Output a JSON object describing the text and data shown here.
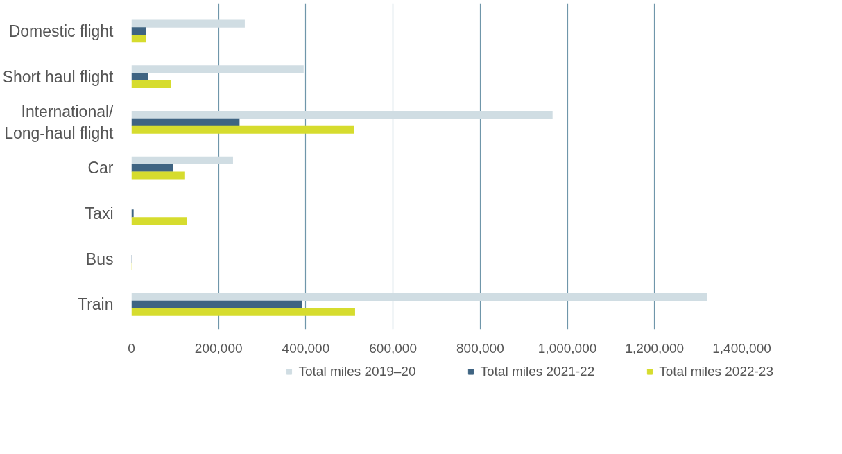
{
  "chart_data": {
    "type": "bar",
    "orientation": "horizontal",
    "categories": [
      "Domestic flight",
      "Short haul flight",
      "International/\nLong-haul flight",
      "Car",
      "Taxi",
      "Bus",
      "Train"
    ],
    "series": [
      {
        "name": "Total miles 2019–20",
        "color": "#d0dde3",
        "values": [
          260000,
          395000,
          966000,
          233000,
          0,
          0,
          1320000
        ]
      },
      {
        "name": "Total miles 2021-22",
        "color": "#3f6482",
        "values": [
          33000,
          38000,
          248000,
          96000,
          5000,
          2000,
          391000
        ]
      },
      {
        "name": "Total miles 2022-23",
        "color": "#d6dc2e",
        "values": [
          33000,
          91000,
          510000,
          123000,
          128000,
          2000,
          513000
        ]
      }
    ],
    "xlim": [
      0,
      1400000
    ],
    "xticks": [
      {
        "value": 0,
        "label": "0"
      },
      {
        "value": 200000,
        "label": "200,000"
      },
      {
        "value": 400000,
        "label": "400,000"
      },
      {
        "value": 600000,
        "label": "600,000"
      },
      {
        "value": 800000,
        "label": "800,000"
      },
      {
        "value": 1000000,
        "label": "1,000,000"
      },
      {
        "value": 1200000,
        "label": "1,200,000"
      },
      {
        "value": 1400000,
        "label": "1,400,000"
      }
    ],
    "grid": "x",
    "legend": "bottom"
  }
}
